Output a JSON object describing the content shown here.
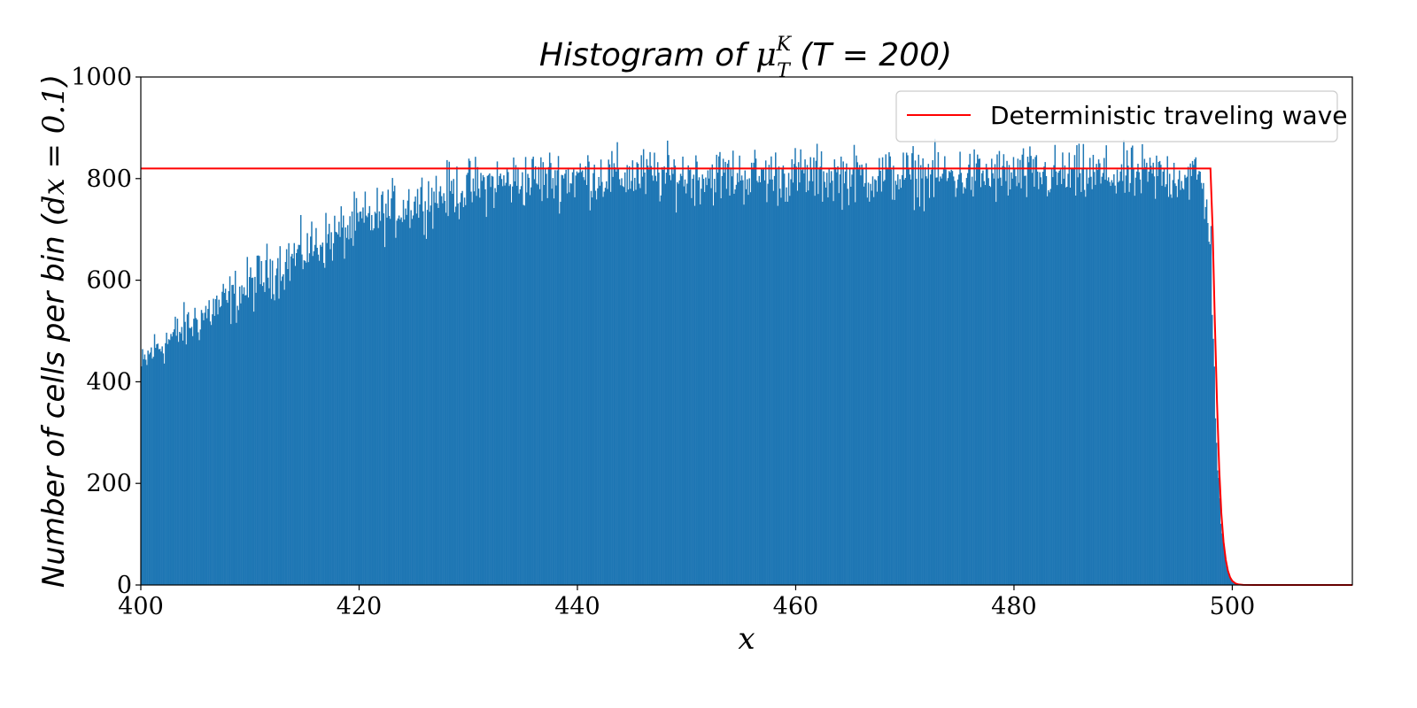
{
  "chart_data": {
    "type": "bar",
    "title": {
      "prefix": "Histogram of ",
      "symbol": "μ",
      "superscript": "K",
      "subscript": "T",
      "suffix": " (T = 200)"
    },
    "xlabel": "x",
    "ylabel": {
      "prefix": "Number of cells per bin (",
      "math": "dx = 0.1",
      "suffix": ")"
    },
    "xlim": [
      400,
      511
    ],
    "ylim": [
      0,
      1000
    ],
    "xticks": [
      400,
      420,
      440,
      460,
      480,
      500
    ],
    "yticks": [
      0,
      200,
      400,
      600,
      800,
      1000
    ],
    "bin_width": 0.1,
    "histogram_envelope": {
      "x": [
        400,
        401,
        402,
        404,
        406,
        408,
        410,
        412,
        414,
        416,
        418,
        420,
        422,
        424,
        426,
        428,
        430,
        432,
        434,
        436,
        438,
        440,
        445,
        450,
        460,
        470,
        480,
        490,
        497,
        498.0,
        498.3,
        498.6,
        499.0,
        499.5,
        500.0,
        500.5,
        501,
        511
      ],
      "y": [
        425,
        460,
        475,
        505,
        535,
        560,
        590,
        620,
        645,
        670,
        690,
        712,
        730,
        745,
        760,
        772,
        782,
        790,
        796,
        800,
        803,
        805,
        806,
        806,
        806,
        806,
        806,
        806,
        806,
        700,
        450,
        250,
        110,
        30,
        6,
        1,
        0,
        0
      ],
      "noise_amplitude": 28
    },
    "series": [
      {
        "name": "Deterministic traveling wave",
        "type": "line",
        "x": [
          400,
          498.0,
          498.2,
          498.4,
          498.6,
          498.8,
          499.0,
          499.2,
          499.4,
          499.6,
          499.8,
          500.0,
          500.3,
          500.6,
          501.0,
          502,
          511
        ],
        "y": [
          820,
          820,
          700,
          520,
          360,
          230,
          140,
          85,
          50,
          28,
          15,
          8,
          3,
          1,
          0.3,
          0,
          0
        ]
      }
    ],
    "legend_position": "top-right",
    "colors": {
      "bars": "#1f77b4",
      "line": "#ff0000",
      "axes": "#000000",
      "legend_border": "#cccccc"
    },
    "grid": false
  }
}
